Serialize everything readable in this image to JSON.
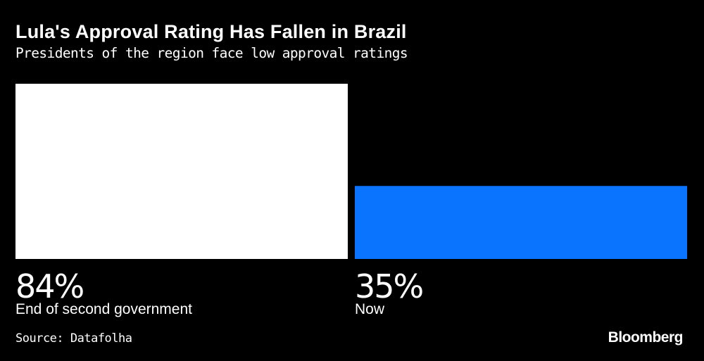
{
  "title": "Lula's Approval Rating Has Fallen in Brazil",
  "subtitle": "Presidents of the region face low approval ratings",
  "source": "Source: Datafolha",
  "brand": "Bloomberg",
  "colors": {
    "background": "#000000",
    "text": "#ffffff",
    "bar_past": "#ffffff",
    "bar_now": "#0a74ff"
  },
  "chart_data": {
    "type": "bar",
    "categories": [
      "End of second government",
      "Now"
    ],
    "values": [
      84,
      35
    ],
    "value_labels": [
      "84%",
      "35%"
    ],
    "ylim": [
      0,
      84
    ],
    "grid": false,
    "xlabel": "",
    "ylabel": ""
  }
}
